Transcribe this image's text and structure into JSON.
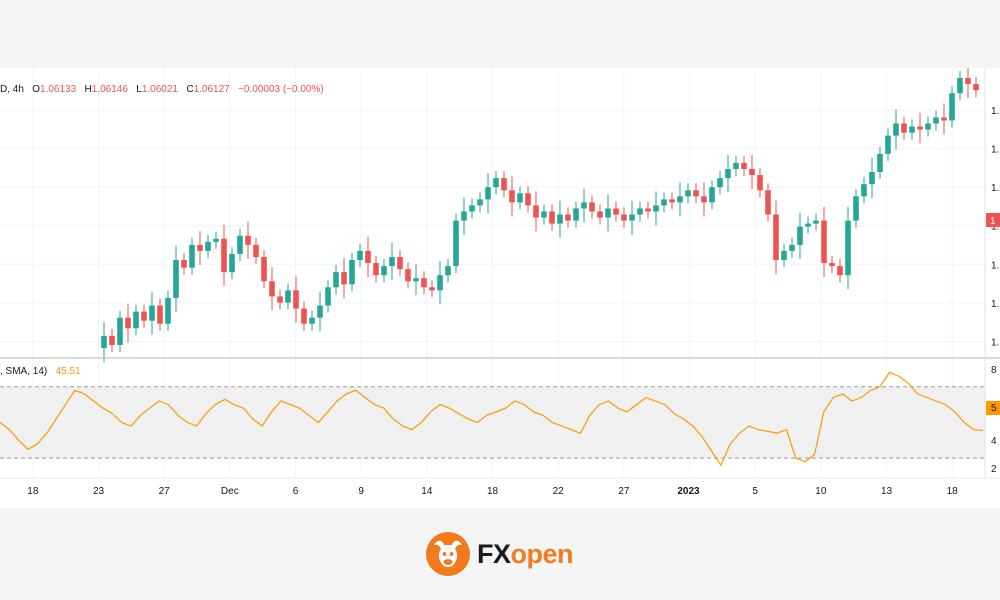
{
  "legend": {
    "symbol_tail": "D, 4h",
    "o_label": "O",
    "o_value": "1.06133",
    "h_label": "H",
    "h_value": "1.06146",
    "l_label": "L",
    "l_value": "1.06021",
    "c_label": "C",
    "c_value": "1.06127",
    "change": "−0.00003 (−0.00%)"
  },
  "rsi_legend": {
    "label": ", SMA, 14)",
    "value": "45.51"
  },
  "price_axis": {
    "tick_labels": [
      "1.",
      "1.",
      "1.",
      "1.",
      "1.",
      "1.",
      "1."
    ],
    "current_tag": "1"
  },
  "rsi_axis": {
    "tick_labels": [
      "8",
      "5",
      "4",
      "2"
    ]
  },
  "brand": {
    "fx": "FX",
    "open": "open",
    "accent_color": "#f47a20"
  },
  "colors": {
    "up": "#26a69a",
    "down": "#ef5350",
    "rsi_line": "#ff9800",
    "rsi_band": "#f0f0f0"
  },
  "chart_data": [
    {
      "type": "candlestick",
      "timeframe": "4h",
      "x_labels": [
        "18",
        "23",
        "27",
        "Dec",
        "6",
        "9",
        "14",
        "18",
        "22",
        "27",
        "2023",
        "5",
        "10",
        "13",
        "18"
      ],
      "grid": true,
      "series": [
        {
          "candles": [
            {
              "o": 0.02,
              "c": 0.1
            },
            {
              "o": 0.1,
              "c": 0.04
            },
            {
              "o": 0.04,
              "c": 0.22
            },
            {
              "o": 0.22,
              "c": 0.15
            },
            {
              "o": 0.15,
              "c": 0.26
            },
            {
              "o": 0.26,
              "c": 0.2
            },
            {
              "o": 0.2,
              "c": 0.3
            },
            {
              "o": 0.3,
              "c": 0.18
            },
            {
              "o": 0.18,
              "c": 0.35
            },
            {
              "o": 0.35,
              "c": 0.6
            },
            {
              "o": 0.6,
              "c": 0.55
            },
            {
              "o": 0.55,
              "c": 0.7
            },
            {
              "o": 0.7,
              "c": 0.66
            },
            {
              "o": 0.66,
              "c": 0.72
            },
            {
              "o": 0.72,
              "c": 0.74
            },
            {
              "o": 0.74,
              "c": 0.52
            },
            {
              "o": 0.52,
              "c": 0.64
            },
            {
              "o": 0.64,
              "c": 0.76
            },
            {
              "o": 0.76,
              "c": 0.7
            },
            {
              "o": 0.7,
              "c": 0.62
            },
            {
              "o": 0.62,
              "c": 0.46
            },
            {
              "o": 0.46,
              "c": 0.36
            },
            {
              "o": 0.36,
              "c": 0.32
            },
            {
              "o": 0.32,
              "c": 0.4
            },
            {
              "o": 0.4,
              "c": 0.28
            },
            {
              "o": 0.28,
              "c": 0.18
            },
            {
              "o": 0.18,
              "c": 0.22
            },
            {
              "o": 0.22,
              "c": 0.3
            },
            {
              "o": 0.3,
              "c": 0.42
            },
            {
              "o": 0.42,
              "c": 0.52
            },
            {
              "o": 0.52,
              "c": 0.44
            },
            {
              "o": 0.44,
              "c": 0.6
            },
            {
              "o": 0.6,
              "c": 0.66
            },
            {
              "o": 0.66,
              "c": 0.58
            },
            {
              "o": 0.58,
              "c": 0.5
            },
            {
              "o": 0.5,
              "c": 0.56
            },
            {
              "o": 0.56,
              "c": 0.62
            },
            {
              "o": 0.62,
              "c": 0.54
            },
            {
              "o": 0.54,
              "c": 0.46
            },
            {
              "o": 0.46,
              "c": 0.48
            },
            {
              "o": 0.48,
              "c": 0.42
            },
            {
              "o": 0.42,
              "c": 0.4
            },
            {
              "o": 0.4,
              "c": 0.5
            },
            {
              "o": 0.5,
              "c": 0.56
            },
            {
              "o": 0.56,
              "c": 0.86
            },
            {
              "o": 0.86,
              "c": 0.92
            },
            {
              "o": 0.92,
              "c": 0.96
            },
            {
              "o": 0.96,
              "c": 1.0
            },
            {
              "o": 1.0,
              "c": 1.08
            },
            {
              "o": 1.08,
              "c": 1.14
            },
            {
              "o": 1.14,
              "c": 1.06
            },
            {
              "o": 1.06,
              "c": 0.98
            },
            {
              "o": 0.98,
              "c": 1.04
            },
            {
              "o": 1.04,
              "c": 0.96
            },
            {
              "o": 0.96,
              "c": 0.88
            },
            {
              "o": 0.88,
              "c": 0.92
            },
            {
              "o": 0.92,
              "c": 0.84
            },
            {
              "o": 0.84,
              "c": 0.9
            },
            {
              "o": 0.9,
              "c": 0.86
            },
            {
              "o": 0.86,
              "c": 0.94
            },
            {
              "o": 0.94,
              "c": 0.98
            },
            {
              "o": 0.98,
              "c": 0.92
            },
            {
              "o": 0.92,
              "c": 0.88
            },
            {
              "o": 0.88,
              "c": 0.94
            },
            {
              "o": 0.94,
              "c": 0.9
            },
            {
              "o": 0.9,
              "c": 0.86
            },
            {
              "o": 0.86,
              "c": 0.9
            },
            {
              "o": 0.9,
              "c": 0.94
            },
            {
              "o": 0.94,
              "c": 0.92
            },
            {
              "o": 0.92,
              "c": 0.96
            },
            {
              "o": 0.96,
              "c": 1.0
            },
            {
              "o": 1.0,
              "c": 0.98
            },
            {
              "o": 0.98,
              "c": 1.02
            },
            {
              "o": 1.02,
              "c": 1.06
            },
            {
              "o": 1.06,
              "c": 1.02
            },
            {
              "o": 1.02,
              "c": 0.98
            },
            {
              "o": 0.98,
              "c": 1.08
            },
            {
              "o": 1.08,
              "c": 1.14
            },
            {
              "o": 1.14,
              "c": 1.2
            },
            {
              "o": 1.2,
              "c": 1.24
            },
            {
              "o": 1.24,
              "c": 1.2
            },
            {
              "o": 1.2,
              "c": 1.16
            },
            {
              "o": 1.16,
              "c": 1.06
            },
            {
              "o": 1.06,
              "c": 0.9
            },
            {
              "o": 0.9,
              "c": 0.6
            },
            {
              "o": 0.6,
              "c": 0.66
            },
            {
              "o": 0.66,
              "c": 0.7
            },
            {
              "o": 0.7,
              "c": 0.82
            },
            {
              "o": 0.82,
              "c": 0.84
            },
            {
              "o": 0.84,
              "c": 0.86
            },
            {
              "o": 0.86,
              "c": 0.58
            },
            {
              "o": 0.58,
              "c": 0.56
            },
            {
              "o": 0.56,
              "c": 0.5
            },
            {
              "o": 0.5,
              "c": 0.86
            },
            {
              "o": 0.86,
              "c": 1.02
            },
            {
              "o": 1.02,
              "c": 1.1
            },
            {
              "o": 1.1,
              "c": 1.18
            },
            {
              "o": 1.18,
              "c": 1.3
            },
            {
              "o": 1.3,
              "c": 1.42
            },
            {
              "o": 1.42,
              "c": 1.5
            },
            {
              "o": 1.5,
              "c": 1.44
            },
            {
              "o": 1.44,
              "c": 1.48
            },
            {
              "o": 1.48,
              "c": 1.46
            },
            {
              "o": 1.46,
              "c": 1.5
            },
            {
              "o": 1.5,
              "c": 1.54
            },
            {
              "o": 1.54,
              "c": 1.52
            },
            {
              "o": 1.52,
              "c": 1.7
            },
            {
              "o": 1.7,
              "c": 1.8
            },
            {
              "o": 1.8,
              "c": 1.76
            },
            {
              "o": 1.76,
              "c": 1.72
            }
          ]
        }
      ]
    },
    {
      "type": "line",
      "indicator": "RSI",
      "x_labels": [
        "18",
        "23",
        "27",
        "Dec",
        "6",
        "9",
        "14",
        "18",
        "22",
        "27",
        "2023",
        "5",
        "10",
        "13",
        "18"
      ],
      "upper_band": 70,
      "lower_band": 30,
      "ylim": [
        20,
        85
      ],
      "series": [
        {
          "values": [
            50,
            46,
            40,
            35,
            38,
            44,
            52,
            60,
            68,
            66,
            62,
            58,
            55,
            50,
            48,
            54,
            58,
            62,
            60,
            54,
            50,
            48,
            55,
            60,
            63,
            60,
            58,
            52,
            48,
            56,
            62,
            60,
            58,
            54,
            50,
            56,
            62,
            66,
            68,
            64,
            60,
            58,
            52,
            48,
            46,
            50,
            56,
            60,
            58,
            55,
            52,
            50,
            54,
            56,
            58,
            62,
            60,
            56,
            54,
            50,
            48,
            46,
            44,
            54,
            60,
            62,
            58,
            56,
            60,
            64,
            62,
            60,
            55,
            52,
            48,
            42,
            34,
            26,
            38,
            44,
            48,
            46,
            45,
            44,
            46,
            30,
            28,
            32,
            56,
            64,
            66,
            62,
            64,
            68,
            70,
            78,
            76,
            72,
            66,
            64,
            62,
            60,
            56,
            50,
            46,
            45.51
          ]
        }
      ]
    }
  ]
}
